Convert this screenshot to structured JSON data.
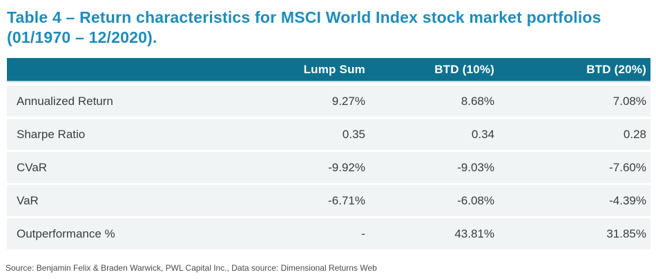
{
  "title": {
    "line1": "Table 4 – Return characteristics for MSCI World Index stock market portfolios",
    "line2": "(01/1970 – 12/2020)."
  },
  "table": {
    "columns": [
      "",
      "Lump Sum",
      "BTD (10%)",
      "BTD (20%)"
    ],
    "rows": [
      {
        "label": "Annualized Return",
        "values": [
          "9.27%",
          "8.68%",
          "7.08%"
        ]
      },
      {
        "label": "Sharpe Ratio",
        "values": [
          "0.35",
          "0.34",
          "0.28"
        ]
      },
      {
        "label": "CVaR",
        "values": [
          "-9.92%",
          "-9.03%",
          "-7.60%"
        ]
      },
      {
        "label": "VaR",
        "values": [
          "-6.71%",
          "-6.08%",
          "-4.39%"
        ]
      },
      {
        "label": "Outperformance %",
        "values": [
          "-",
          "43.81%",
          "31.85%"
        ]
      }
    ]
  },
  "source_note": "Source: Benjamin Felix & Braden Warwick, PWL Capital Inc., Data source: Dimensional Returns Web",
  "colors": {
    "title_text": "#1b8dbd",
    "header_bg": "#0f7190",
    "header_text": "#ffffff",
    "header_underline": "#bcd9e3",
    "row_bg": "#f1f4f5",
    "body_text": "#3c3c3c",
    "source_text": "#4b4b4b"
  },
  "chart_data": {
    "type": "table",
    "title": "Table 4 – Return characteristics for MSCI World Index stock market portfolios (01/1970 – 12/2020).",
    "columns": [
      "Lump Sum",
      "BTD (10%)",
      "BTD (20%)"
    ],
    "rows": [
      {
        "metric": "Annualized Return",
        "lump_sum": "9.27%",
        "btd_10": "8.68%",
        "btd_20": "7.08%"
      },
      {
        "metric": "Sharpe Ratio",
        "lump_sum": "0.35",
        "btd_10": "0.34",
        "btd_20": "0.28"
      },
      {
        "metric": "CVaR",
        "lump_sum": "-9.92%",
        "btd_10": "-9.03%",
        "btd_20": "-7.60%"
      },
      {
        "metric": "VaR",
        "lump_sum": "-6.71%",
        "btd_10": "-6.08%",
        "btd_20": "-4.39%"
      },
      {
        "metric": "Outperformance %",
        "lump_sum": "-",
        "btd_10": "43.81%",
        "btd_20": "31.85%"
      }
    ]
  }
}
